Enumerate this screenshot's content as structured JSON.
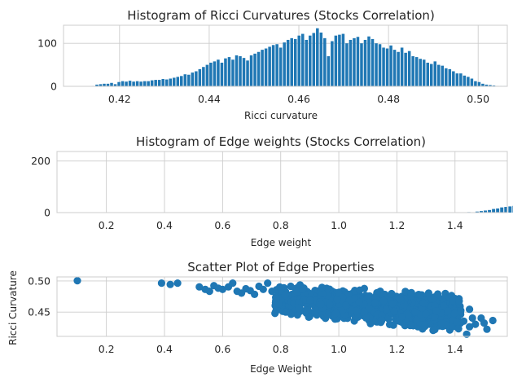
{
  "chart_data": [
    {
      "type": "bar",
      "title": "Histogram of Ricci Curvatures (Stocks Correlation)",
      "xlabel": "Ricci curvature",
      "ylabel": "",
      "xlim": [
        0.4075,
        0.5065
      ],
      "ylim": [
        0,
        142
      ],
      "xticks": [
        0.42,
        0.44,
        0.46,
        0.48,
        0.5
      ],
      "xtick_labels": [
        "0.42",
        "0.44",
        "0.46",
        "0.48",
        "0.50"
      ],
      "yticks": [
        0,
        100
      ],
      "ytick_labels": [
        "0",
        "100"
      ],
      "bin_start": 0.4138,
      "bin_width": 0.00082,
      "values": [
        1,
        4,
        5,
        6,
        6,
        8,
        5,
        10,
        12,
        11,
        13,
        11,
        12,
        11,
        12,
        12,
        14,
        15,
        15,
        17,
        16,
        18,
        20,
        22,
        24,
        28,
        27,
        32,
        35,
        40,
        45,
        50,
        55,
        58,
        62,
        55,
        65,
        68,
        62,
        72,
        70,
        66,
        60,
        72,
        76,
        80,
        85,
        88,
        92,
        96,
        98,
        90,
        102,
        108,
        112,
        110,
        118,
        122,
        108,
        118,
        124,
        135,
        125,
        112,
        70,
        105,
        118,
        120,
        122,
        100,
        108,
        112,
        115,
        100,
        108,
        116,
        110,
        100,
        98,
        90,
        88,
        95,
        85,
        80,
        90,
        78,
        82,
        70,
        68,
        64,
        62,
        55,
        52,
        58,
        50,
        48,
        42,
        40,
        35,
        30,
        30,
        25,
        22,
        18,
        12,
        10,
        6,
        4,
        3,
        2,
        1,
        1,
        1,
        0,
        0,
        0,
        0,
        0,
        0,
        0,
        0,
        0,
        0,
        0,
        0,
        0,
        0,
        1
      ]
    },
    {
      "type": "bar",
      "title": "Histogram of Edge weights (Stocks Correlation)",
      "xlabel": "Edge weight",
      "ylabel": "",
      "xlim": [
        0.03,
        1.58
      ],
      "ylim": [
        0,
        237
      ],
      "xticks": [
        0.2,
        0.4,
        0.6,
        0.8,
        1.0,
        1.2,
        1.4
      ],
      "xtick_labels": [
        "0.2",
        "0.4",
        "0.6",
        "0.8",
        "1.0",
        "1.2",
        "1.4"
      ],
      "yticks": [
        0,
        200
      ],
      "ytick_labels": [
        "0",
        "200"
      ],
      "bin_start": 0.098,
      "bin_width": 0.01415,
      "values": [
        1,
        0,
        0,
        0,
        0,
        0,
        0,
        0,
        0,
        0,
        0,
        0,
        0,
        0,
        0,
        0,
        0,
        0,
        0,
        0,
        0,
        0,
        0,
        0,
        0,
        0,
        0,
        0,
        0,
        0,
        0,
        0,
        0,
        0,
        0,
        0,
        0,
        0,
        0,
        0,
        0,
        0,
        0,
        0,
        0,
        0,
        0,
        0,
        0,
        0,
        0,
        0,
        0,
        0,
        0,
        0,
        0,
        0,
        0,
        0,
        0,
        0,
        0,
        0,
        0,
        0,
        0,
        0,
        0,
        0,
        0,
        0,
        0,
        0,
        0,
        0,
        0,
        0,
        0,
        0,
        0,
        0,
        0,
        0,
        0,
        0,
        0,
        0,
        0,
        0,
        0,
        1,
        1,
        1,
        0,
        2,
        1,
        4,
        6,
        8,
        10,
        14,
        16,
        20,
        22,
        24,
        26,
        30,
        36,
        42,
        50,
        58,
        70,
        82,
        96,
        110,
        140,
        170,
        175,
        180,
        170,
        165,
        175,
        170,
        180,
        185,
        160,
        165,
        180,
        200,
        200,
        185,
        165,
        200,
        205,
        225,
        195,
        170,
        165,
        150,
        130,
        125,
        100,
        80,
        70,
        55,
        45,
        28,
        24,
        15,
        12,
        8,
        4,
        2,
        1,
        1
      ]
    },
    {
      "type": "scatter",
      "title": "Scatter Plot of Edge Properties",
      "xlabel": "Edge Weight",
      "ylabel": "Ricci Curvature",
      "xlim": [
        0.03,
        1.58
      ],
      "ylim": [
        0.411,
        0.5065
      ],
      "xticks": [
        0.2,
        0.4,
        0.6,
        0.8,
        1.0,
        1.2,
        1.4
      ],
      "xtick_labels": [
        "0.2",
        "0.4",
        "0.6",
        "0.8",
        "1.0",
        "1.2",
        "1.4"
      ],
      "yticks": [
        0.45,
        0.5
      ],
      "ytick_labels": [
        "0.45",
        "0.50"
      ],
      "color": "#1f77b4",
      "points": [
        [
          0.1,
          0.5005
        ],
        [
          0.39,
          0.4965
        ],
        [
          0.42,
          0.4945
        ],
        [
          0.445,
          0.4965
        ],
        [
          0.52,
          0.4905
        ],
        [
          0.54,
          0.4865
        ],
        [
          0.555,
          0.4835
        ],
        [
          0.57,
          0.4925
        ],
        [
          0.585,
          0.4885
        ],
        [
          0.6,
          0.4865
        ],
        [
          0.62,
          0.4905
        ],
        [
          0.635,
          0.4965
        ],
        [
          0.65,
          0.4835
        ],
        [
          0.665,
          0.4805
        ],
        [
          0.68,
          0.4875
        ],
        [
          0.695,
          0.4845
        ],
        [
          0.71,
          0.4785
        ],
        [
          0.725,
          0.4915
        ],
        [
          0.74,
          0.4865
        ],
        [
          0.755,
          0.4965
        ],
        [
          0.77,
          0.4835
        ],
        [
          0.785,
          0.4725
        ],
        [
          1.44,
          0.4145
        ],
        [
          1.45,
          0.4265
        ],
        [
          1.47,
          0.4305
        ],
        [
          1.49,
          0.4405
        ],
        [
          1.5,
          0.4325
        ],
        [
          1.51,
          0.4225
        ],
        [
          1.53,
          0.4365
        ],
        [
          1.43,
          0.4355
        ],
        [
          1.46,
          0.4405
        ],
        [
          1.45,
          0.4545
        ],
        [
          1.42,
          0.4525
        ]
      ],
      "dense_region": {
        "xmin": 0.78,
        "xmax": 1.42,
        "ymin_at_xmin": 0.446,
        "ymax_at_xmin": 0.497,
        "ymin_at_xmax": 0.414,
        "ymax_at_xmax": 0.481
      }
    }
  ]
}
